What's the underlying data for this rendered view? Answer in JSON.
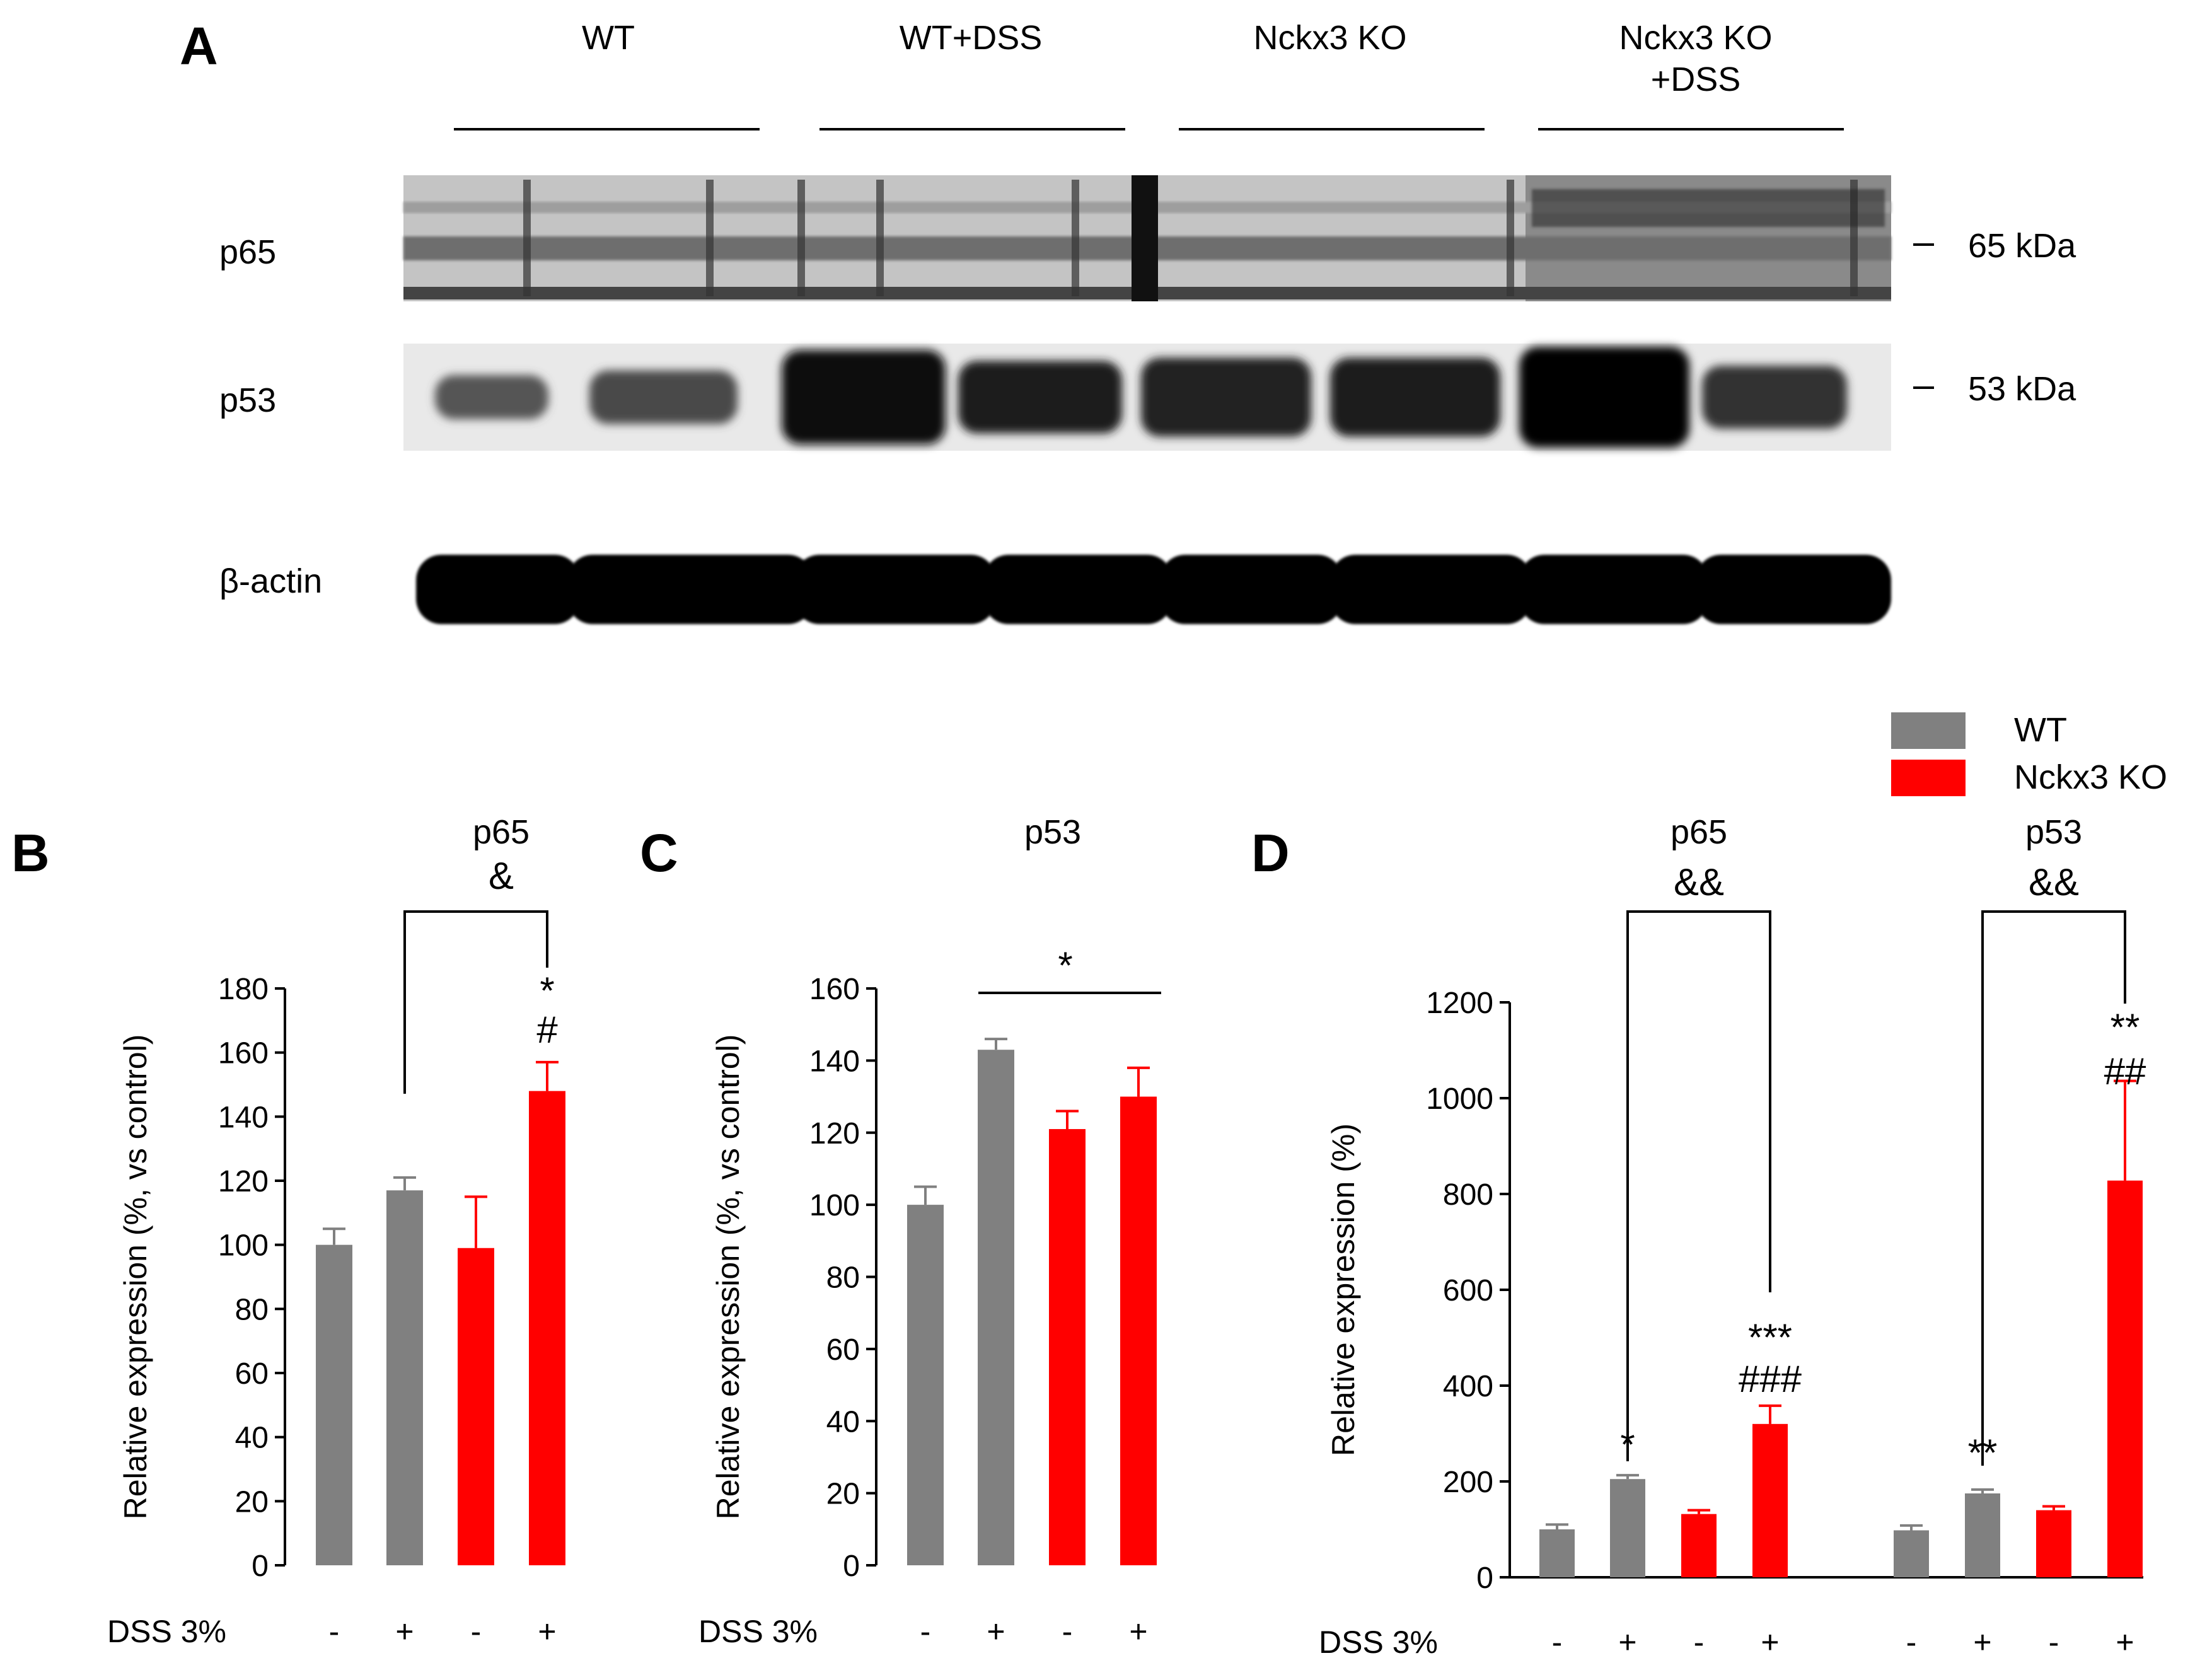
{
  "panel_a": {
    "letter": "A",
    "groups": [
      "WT",
      "WT+DSS",
      "Nckx3 KO",
      "Nckx3 KO\n+DSS"
    ],
    "bands": [
      {
        "protein": "p65",
        "size": "65 kDa"
      },
      {
        "protein": "p53",
        "size": "53 kDa"
      },
      {
        "protein": "β-actin",
        "size": ""
      }
    ]
  },
  "legend": [
    {
      "name": "WT",
      "color": "#808080"
    },
    {
      "name": "Nckx3 KO",
      "color": "#ff0000"
    }
  ],
  "colors": {
    "wt": "#808080",
    "ko": "#ff0000"
  },
  "chart_data": [
    {
      "panel": "B",
      "type": "bar",
      "title": "p65",
      "ylabel": "Relative expression (%, vs control)",
      "ylim": [
        0,
        180
      ],
      "yticks": [
        0,
        20,
        40,
        60,
        80,
        100,
        120,
        140,
        160,
        180
      ],
      "dss_label": "DSS 3%",
      "dss": [
        "-",
        "+",
        "-",
        "+"
      ],
      "genotype": [
        "WT",
        "WT",
        "Nckx3 KO",
        "Nckx3 KO"
      ],
      "values": [
        100,
        117,
        99,
        148
      ],
      "errors": [
        5,
        4,
        16,
        9
      ],
      "annotations": [
        {
          "bar": 3,
          "text": "*"
        },
        {
          "bar": 3,
          "text": "#"
        }
      ],
      "bracket": {
        "from": 1,
        "to": 3,
        "label": "&"
      }
    },
    {
      "panel": "C",
      "type": "bar",
      "title": "p53",
      "ylabel": "Relative expression (%, vs control)",
      "ylim": [
        0,
        160
      ],
      "yticks": [
        0,
        20,
        40,
        60,
        80,
        100,
        120,
        140,
        160
      ],
      "dss_label": "DSS 3%",
      "dss": [
        "-",
        "+",
        "-",
        "+"
      ],
      "genotype": [
        "WT",
        "WT",
        "Nckx3 KO",
        "Nckx3 KO"
      ],
      "values": [
        100,
        143,
        121,
        130
      ],
      "errors": [
        5,
        3,
        5,
        8
      ],
      "line": {
        "from": 1,
        "to": 3,
        "label": "*"
      }
    },
    {
      "panel": "D",
      "type": "bar",
      "ylabel": "Relative expression (%)",
      "ylim": [
        0,
        1200
      ],
      "yticks": [
        0,
        200,
        400,
        600,
        800,
        1000,
        1200
      ],
      "dss_label": "DSS 3%",
      "groups": [
        {
          "title": "p65",
          "dss": [
            "-",
            "+",
            "-",
            "+"
          ],
          "genotype": [
            "WT",
            "WT",
            "Nckx3 KO",
            "Nckx3 KO"
          ],
          "values": [
            100,
            205,
            132,
            320
          ],
          "errors": [
            10,
            8,
            8,
            38
          ],
          "annotations": [
            {
              "bar": 1,
              "text": "*"
            },
            {
              "bar": 3,
              "text": "***"
            },
            {
              "bar": 3,
              "text": "###"
            }
          ],
          "bracket": {
            "from": 1,
            "to": 3,
            "label": "&&"
          }
        },
        {
          "title": "p53",
          "dss": [
            "-",
            "+",
            "-",
            "+"
          ],
          "genotype": [
            "WT",
            "WT",
            "Nckx3 KO",
            "Nckx3 KO"
          ],
          "values": [
            98,
            175,
            140,
            828
          ],
          "errors": [
            10,
            8,
            8,
            208
          ],
          "annotations": [
            {
              "bar": 1,
              "text": "**"
            },
            {
              "bar": 3,
              "text": "**"
            },
            {
              "bar": 3,
              "text": "##"
            }
          ],
          "bracket": {
            "from": 1,
            "to": 3,
            "label": "&&"
          }
        }
      ]
    }
  ]
}
